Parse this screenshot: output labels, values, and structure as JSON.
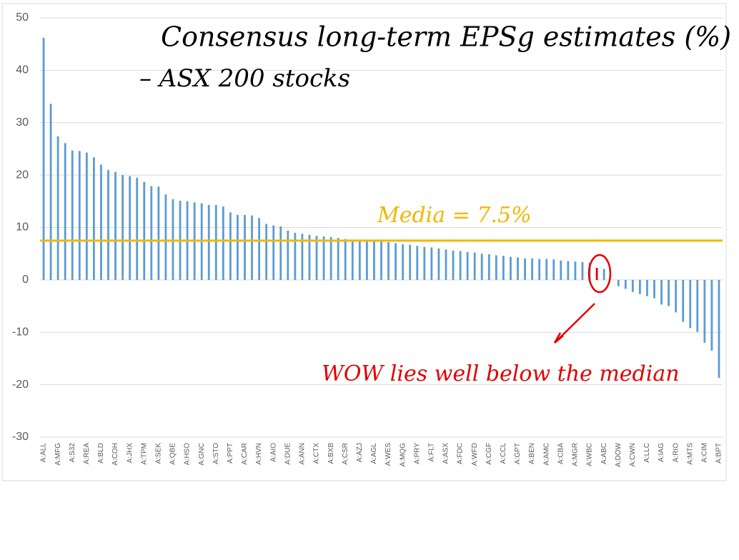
{
  "chart_data": {
    "type": "bar",
    "title": "Consensus long-term EPSg estimates (%)",
    "subtitle": "– ASX 200 stocks",
    "annotations": [
      "Media = 7.5%",
      "WOW lies well below the median"
    ],
    "median": 7.5,
    "median_color": "#f2b705",
    "categories": [
      "A:ALL",
      null,
      "A:MFG",
      null,
      "A:S32",
      null,
      "A:REA",
      null,
      "A:BLD",
      null,
      "A:COH",
      null,
      "A:JHX",
      null,
      "A:TPM",
      null,
      "A:SEK",
      null,
      "A:QBE",
      null,
      "A:HSO",
      null,
      "A:GNC",
      null,
      "A:STO",
      null,
      "A:PPT",
      null,
      "A:CAR",
      null,
      "A:HVN",
      null,
      "A:AIO",
      null,
      "A:DUE",
      null,
      "A:ANN",
      null,
      "A:CTX",
      null,
      "A:BXB",
      null,
      "A:CSR",
      null,
      "A:AZJ",
      null,
      "A:AGL",
      null,
      "A:WES",
      null,
      "A:MQG",
      null,
      "A:PRY",
      null,
      "A:FLT",
      null,
      "A:ASX",
      null,
      "A:FDC",
      null,
      "A:WFD",
      null,
      "A:CGF",
      null,
      "A:CCL",
      null,
      "A:GPT",
      null,
      "A:BEN",
      null,
      "A:AMC",
      null,
      "A:CBA",
      null,
      "A:MGR",
      null,
      "A:WBC",
      null,
      "A:ABC",
      null,
      "A:DOW",
      null,
      "A:CWN",
      null,
      "A:LLC",
      null,
      "A:IAG",
      null,
      "A:RIO",
      null,
      "A:MTS",
      null,
      "A:CIM",
      null,
      "A:BPT"
    ],
    "values": [
      46.2,
      33.6,
      27.4,
      26.1,
      24.7,
      24.6,
      24.3,
      23.4,
      22.0,
      21.0,
      20.6,
      20.0,
      19.8,
      19.5,
      18.7,
      17.9,
      17.8,
      16.3,
      15.4,
      15.1,
      15.0,
      14.8,
      14.6,
      14.3,
      14.3,
      14.0,
      12.9,
      12.4,
      12.4,
      12.3,
      11.8,
      10.7,
      10.4,
      10.2,
      9.4,
      9.0,
      8.8,
      8.6,
      8.4,
      8.3,
      8.2,
      8.0,
      7.8,
      7.6,
      7.5,
      7.5,
      7.4,
      7.3,
      7.2,
      7.0,
      6.8,
      6.7,
      6.5,
      6.3,
      6.2,
      6.0,
      5.8,
      5.6,
      5.5,
      5.3,
      5.2,
      5.0,
      4.9,
      4.7,
      4.6,
      4.4,
      4.3,
      4.1,
      4.1,
      4.0,
      4.0,
      3.9,
      3.7,
      3.6,
      3.5,
      3.4,
      3.3,
      2.3,
      2.1,
      0,
      -1.2,
      -1.7,
      -2.3,
      -2.7,
      -3.1,
      -3.5,
      -4.7,
      -5.0,
      -6.2,
      -8.0,
      -9.2,
      -9.9,
      -12.0,
      -13.5,
      -18.7
    ],
    "color": "#5b9bd5",
    "highlight_color": "#e00000",
    "highlight": [
      77
    ],
    "ylim": [
      -30,
      50
    ],
    "yticks": [
      -30,
      -20,
      -10,
      0,
      10,
      20,
      30,
      40,
      50
    ],
    "grid": true
  }
}
